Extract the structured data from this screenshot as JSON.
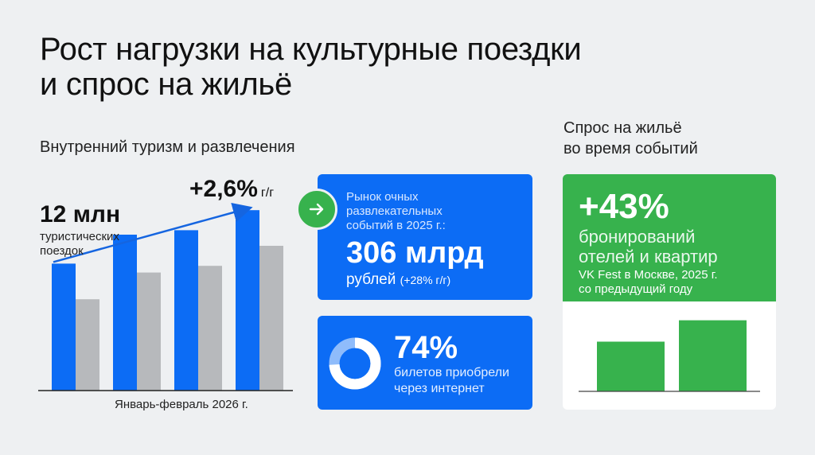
{
  "title": {
    "line1": "Рост нагрузки на культурные поездки",
    "line2": "и спрос на жильё"
  },
  "sections": {
    "left": "Внутренний туризм и развлечения",
    "right_line1": "Спрос на жильё",
    "right_line2": "во время событий"
  },
  "colors": {
    "blue": "#0c6cf5",
    "gray": "#b7b9bc",
    "green": "#37b24d",
    "background": "#eef0f2"
  },
  "tourism": {
    "value": "12 млн",
    "label_line1": "туристических",
    "label_line2": "поездок",
    "growth": "+2,6%",
    "growth_unit": "г/г",
    "period": "Январь-февраль 2026 г."
  },
  "market": {
    "head_line1": "Рынок очных",
    "head_line2": "развлекательных",
    "head_line3": "событий в 2025 г.:",
    "value": "306 млрд",
    "unit": "рублей",
    "change": "(+28% г/г)",
    "icon": "arrow-right-icon"
  },
  "tickets": {
    "value": "74%",
    "text_line1": "билетов приобрели",
    "text_line2": "через интернет",
    "share": 0.74
  },
  "housing": {
    "value": "+43%",
    "text_line1": "бронирований",
    "text_line2": "отелей и квартир",
    "note_line1": "VK Fest в Москве, 2025 г.",
    "note_line2": "со предыдущий году"
  },
  "chart_data": [
    {
      "type": "bar",
      "categories": [
        "",
        "",
        "",
        ""
      ],
      "series": [
        {
          "values": [
            57,
            70,
            72,
            81
          ]
        },
        {
          "values": [
            41,
            53,
            56,
            65
          ]
        }
      ],
      "ylim": [
        0,
        90
      ],
      "trend_arrow": true,
      "grid": false
    },
    {
      "type": "pie",
      "values": [
        74,
        26
      ]
    },
    {
      "type": "bar",
      "categories": [
        "",
        ""
      ],
      "values": [
        100,
        143
      ],
      "ylim": [
        0,
        160
      ]
    }
  ]
}
